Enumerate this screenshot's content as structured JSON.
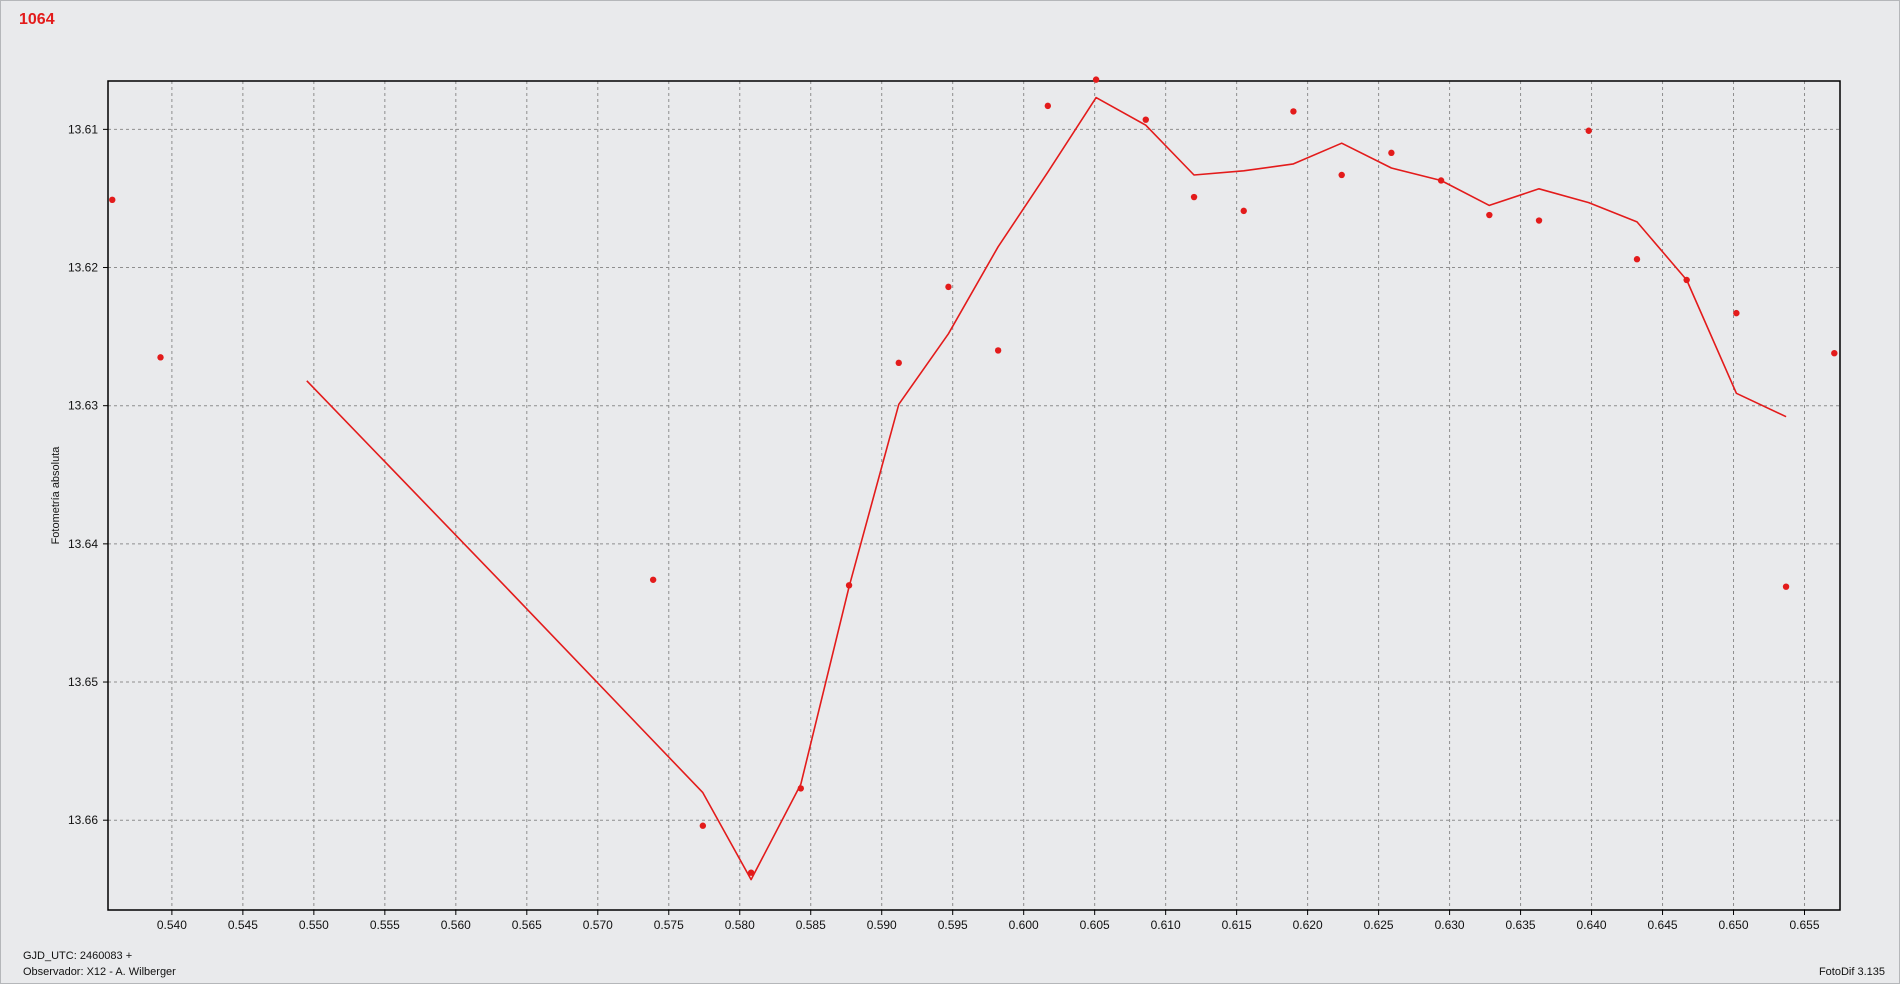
{
  "window": {
    "star_id": "1064"
  },
  "footer": {
    "gjd_line": "GJD_UTC: 2460083 +",
    "observer_line": "Observador: X12 - A. Wilberger",
    "software": "FotoDif 3.135"
  },
  "colors": {
    "series": "#e31b1b",
    "grid": "#8e8e8e",
    "background": "#e9eaec",
    "axis": "#000000"
  },
  "chart_data": {
    "type": "scatter",
    "title": "",
    "xlabel": "",
    "ylabel": "Fotometría absoluta",
    "xlim": [
      0.5355,
      0.6575
    ],
    "ylim": [
      13.6065,
      13.6665
    ],
    "y_inverted": true,
    "grid": true,
    "x_ticks": [
      0.54,
      0.545,
      0.55,
      0.555,
      0.56,
      0.565,
      0.57,
      0.575,
      0.58,
      0.585,
      0.59,
      0.595,
      0.6,
      0.605,
      0.61,
      0.615,
      0.62,
      0.625,
      0.63,
      0.635,
      0.64,
      0.645,
      0.65,
      0.655
    ],
    "x_tick_labels": [
      "0.540",
      "0.545",
      "0.550",
      "0.555",
      "0.560",
      "0.565",
      "0.570",
      "0.575",
      "0.580",
      "0.585",
      "0.590",
      "0.595",
      "0.600",
      "0.605",
      "0.610",
      "0.615",
      "0.620",
      "0.625",
      "0.630",
      "0.635",
      "0.640",
      "0.645",
      "0.650",
      "0.655"
    ],
    "y_ticks": [
      13.61,
      13.62,
      13.63,
      13.64,
      13.65,
      13.66
    ],
    "y_tick_labels": [
      "13.61",
      "13.62",
      "13.63",
      "13.64",
      "13.65",
      "13.66"
    ],
    "series": [
      {
        "kind": "points",
        "x": [
          0.5358,
          0.5392,
          0.5739,
          0.5774,
          0.5808,
          0.5843,
          0.5877,
          0.5912,
          0.5947,
          0.5982,
          0.6017,
          0.6051,
          0.6086,
          0.612,
          0.6155,
          0.619,
          0.6224,
          0.6259,
          0.6294,
          0.6328,
          0.6363,
          0.6398,
          0.6432,
          0.6467,
          0.6502,
          0.6537,
          0.6571
        ],
        "y": [
          13.6151,
          13.6265,
          13.6426,
          13.6604,
          13.6638,
          13.6577,
          13.643,
          13.6269,
          13.6214,
          13.626,
          13.6083,
          13.6064,
          13.6093,
          13.6149,
          13.6159,
          13.6087,
          13.6133,
          13.6117,
          13.6137,
          13.6162,
          13.6166,
          13.6101,
          13.6194,
          13.6209,
          13.6233,
          13.6431,
          13.6262
        ]
      },
      {
        "kind": "line",
        "x": [
          0.5495,
          0.5635,
          0.5774,
          0.5808,
          0.5843,
          0.5877,
          0.5912,
          0.5947,
          0.5982,
          0.6017,
          0.6051,
          0.6086,
          0.612,
          0.6155,
          0.619,
          0.6224,
          0.6259,
          0.6294,
          0.6328,
          0.6363,
          0.6398,
          0.6432,
          0.6467,
          0.6502,
          0.6537
        ],
        "y": [
          13.6282,
          13.6431,
          13.658,
          13.6643,
          13.6574,
          13.6431,
          13.6299,
          13.6248,
          13.6185,
          13.6131,
          13.6077,
          13.6097,
          13.6133,
          13.613,
          13.6125,
          13.611,
          13.6128,
          13.6137,
          13.6155,
          13.6143,
          13.6153,
          13.6167,
          13.6209,
          13.6291,
          13.6308
        ]
      }
    ]
  }
}
